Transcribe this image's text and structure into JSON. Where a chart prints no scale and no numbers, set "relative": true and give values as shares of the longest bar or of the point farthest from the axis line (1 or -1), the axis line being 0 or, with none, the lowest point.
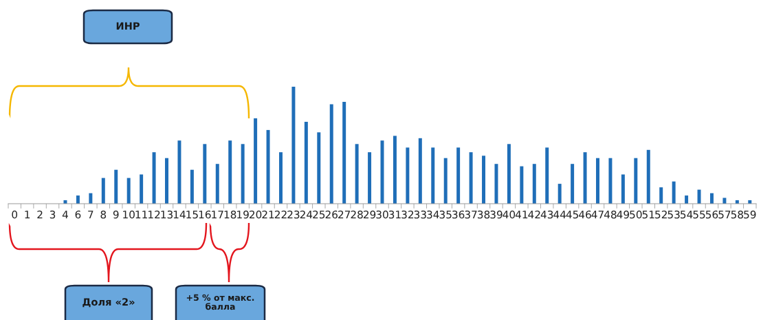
{
  "chart_data": {
    "type": "bar",
    "relative": true,
    "color": "#1f6eb8",
    "categories": [
      "0",
      "1",
      "2",
      "3",
      "4",
      "6",
      "7",
      "8",
      "9",
      "10",
      "11",
      "12",
      "13",
      "14",
      "15",
      "16",
      "17",
      "18",
      "19",
      "20",
      "21",
      "22",
      "23",
      "24",
      "25",
      "26",
      "27",
      "28",
      "29",
      "30",
      "31",
      "32",
      "33",
      "34",
      "35",
      "36",
      "37",
      "38",
      "39",
      "40",
      "41",
      "42",
      "43",
      "44",
      "45",
      "46",
      "47",
      "48",
      "49",
      "50",
      "51",
      "52",
      "53",
      "54",
      "55",
      "56",
      "57",
      "58",
      "59"
    ],
    "values": [
      0,
      0,
      0,
      0,
      0.03,
      0.07,
      0.09,
      0.22,
      0.29,
      0.22,
      0.25,
      0.44,
      0.39,
      0.54,
      0.29,
      0.51,
      0.34,
      0.54,
      0.51,
      0.73,
      0.63,
      0.44,
      1,
      0.7,
      0.61,
      0.85,
      0.87,
      0.51,
      0.44,
      0.54,
      0.58,
      0.48,
      0.56,
      0.48,
      0.39,
      0.48,
      0.44,
      0.41,
      0.34,
      0.51,
      0.32,
      0.34,
      0.48,
      0.17,
      0.34,
      0.44,
      0.39,
      0.39,
      0.25,
      0.39,
      0.46,
      0.14,
      0.19,
      0.07,
      0.12,
      0.09,
      0.05,
      0.03,
      0.03
    ],
    "annotations": [
      "ИНР",
      "Доля «2»",
      "+5 % от макс.\nбалла"
    ]
  }
}
